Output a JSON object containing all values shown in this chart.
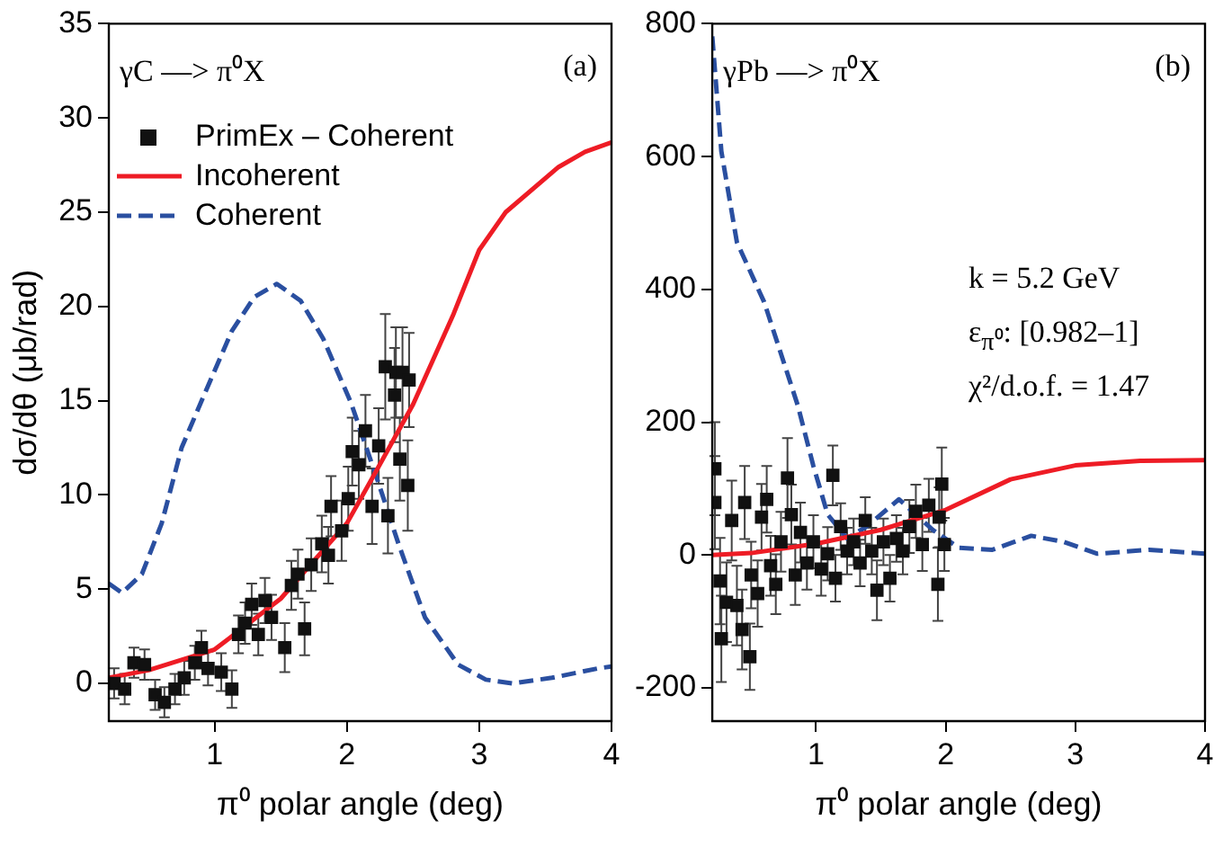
{
  "chart_data": [
    {
      "type": "scatter",
      "xlabel": "π⁰ polar angle (deg)",
      "ylabel": "dσ/dθ (μb/rad)",
      "xlim": [
        0.2,
        4
      ],
      "ylim": [
        -2,
        35
      ],
      "xticks": [
        1,
        2,
        3,
        4
      ],
      "yticks": [
        0,
        5,
        10,
        15,
        20,
        25,
        30,
        35
      ],
      "grid": false,
      "legend": "top left",
      "annotations": [
        "γC —> π⁰X",
        "(a)"
      ],
      "series": [
        {
          "name": "PrimEx – Coherent",
          "type": "scatter",
          "marker": "square",
          "color": "#111111",
          "x": [
            0.24,
            0.32,
            0.39,
            0.47,
            0.55,
            0.62,
            0.7,
            0.77,
            0.85,
            0.9,
            0.95,
            1.05,
            1.13,
            1.18,
            1.23,
            1.28,
            1.33,
            1.38,
            1.43,
            1.53,
            1.58,
            1.63,
            1.68,
            1.73,
            1.81,
            1.86,
            1.88,
            1.96,
            2.01,
            2.04,
            2.09,
            2.14,
            2.19,
            2.24,
            2.29,
            2.31,
            2.36,
            2.37,
            2.4,
            2.42,
            2.46,
            2.47
          ],
          "values": [
            0,
            -0.3,
            1.1,
            1,
            -0.6,
            -1,
            -0.3,
            0.3,
            1.1,
            1.9,
            0.8,
            0.6,
            -0.3,
            2.6,
            3.2,
            4.2,
            2.6,
            4.4,
            3.5,
            1.9,
            5.2,
            5.8,
            2.9,
            6.3,
            7.4,
            6.8,
            9.4,
            8.1,
            9.8,
            12.3,
            11.6,
            13.4,
            9.4,
            12.6,
            16.8,
            8.9,
            15.3,
            16.5,
            11.9,
            16.5,
            10.5,
            16.1
          ],
          "errors": [
            0.8,
            0.8,
            0.8,
            0.8,
            0.8,
            0.8,
            0.8,
            0.9,
            0.9,
            0.9,
            0.9,
            1,
            1,
            1,
            1.1,
            1.1,
            1.1,
            1.2,
            1.2,
            1.3,
            1.3,
            1.3,
            1.4,
            1.4,
            1.5,
            1.5,
            1.6,
            1.6,
            1.7,
            1.8,
            1.8,
            1.9,
            2,
            2,
            2.8,
            2,
            2.5,
            2.4,
            2.2,
            2.4,
            2.4,
            2.5
          ]
        },
        {
          "name": "Incoherent",
          "type": "line",
          "marker": "none",
          "line_style": "solid",
          "color": "#ee1c25",
          "x": [
            0.2,
            0.5,
            1,
            1.5,
            2,
            2.2,
            2.5,
            2.8,
            3,
            3.2,
            3.6,
            3.8,
            4
          ],
          "values": [
            0.3,
            0.7,
            1.8,
            4.5,
            8.5,
            11,
            14.8,
            19.5,
            23,
            25,
            27.4,
            28.2,
            28.7
          ]
        },
        {
          "name": "Coherent",
          "type": "line",
          "marker": "none",
          "line_style": "dashed",
          "color": "#2a4fa0",
          "x": [
            0.2,
            0.3,
            0.45,
            0.6,
            0.75,
            0.92,
            1.13,
            1.3,
            1.47,
            1.65,
            1.82,
            2.03,
            2.24,
            2.39,
            2.59,
            2.84,
            3.05,
            3.25,
            3.55,
            3.9,
            4
          ],
          "values": [
            5.3,
            4.8,
            5.8,
            8.5,
            12.5,
            15.3,
            18.7,
            20.5,
            21.2,
            20.3,
            18.3,
            14.9,
            10.6,
            7.4,
            3.5,
            1,
            0.2,
            0,
            0.3,
            0.8,
            0.9
          ]
        }
      ]
    },
    {
      "type": "scatter",
      "xlabel": "π⁰ polar angle (deg)",
      "xlim": [
        0.2,
        4
      ],
      "ylim": [
        -250,
        800
      ],
      "xticks": [
        1,
        2,
        3,
        4
      ],
      "yticks": [
        -200,
        0,
        200,
        400,
        600,
        800
      ],
      "grid": false,
      "annotations": [
        "γPb —> π⁰X",
        "(b)",
        "k = 5.2 GeV",
        "ε$_{π⁰}$: [0.982–1]",
        "χ²/d.o.f. = 1.47"
      ],
      "series": [
        {
          "type": "scatter",
          "marker": "square",
          "color": "#111111",
          "x": [
            0.22,
            0.22,
            0.26,
            0.27,
            0.31,
            0.35,
            0.39,
            0.43,
            0.45,
            0.49,
            0.5,
            0.55,
            0.58,
            0.62,
            0.65,
            0.69,
            0.73,
            0.78,
            0.81,
            0.84,
            0.88,
            0.93,
            0.98,
            1.04,
            1.09,
            1.13,
            1.15,
            1.19,
            1.24,
            1.29,
            1.34,
            1.38,
            1.43,
            1.47,
            1.52,
            1.57,
            1.62,
            1.67,
            1.72,
            1.77,
            1.82,
            1.87,
            1.94,
            1.95,
            1.97,
            1.99
          ],
          "values": [
            130,
            79,
            -39,
            -126,
            -71,
            52,
            -76,
            -112,
            79,
            -153,
            -30,
            -58,
            57,
            84,
            -16,
            -44,
            20,
            116,
            61,
            -30,
            34,
            -12,
            20,
            -21,
            2,
            120,
            -35,
            43,
            6,
            20,
            -12,
            52,
            6,
            -53,
            20,
            -35,
            25,
            6,
            43,
            66,
            16,
            75,
            -44,
            57,
            107,
            16
          ],
          "errors": [
            70,
            70,
            65,
            65,
            60,
            60,
            60,
            60,
            55,
            50,
            50,
            50,
            50,
            50,
            45,
            45,
            45,
            60,
            45,
            45,
            45,
            40,
            40,
            40,
            40,
            45,
            35,
            35,
            35,
            35,
            35,
            35,
            35,
            45,
            35,
            35,
            35,
            35,
            40,
            40,
            40,
            40,
            55,
            45,
            55,
            40
          ]
        },
        {
          "type": "line",
          "marker": "none",
          "line_style": "solid",
          "color": "#ee1c25",
          "x": [
            0.2,
            0.5,
            1,
            1.5,
            2,
            2.5,
            3,
            3.5,
            4
          ],
          "values": [
            0,
            3,
            17,
            38,
            68,
            114,
            135,
            142,
            143
          ]
        },
        {
          "type": "line",
          "marker": "none",
          "line_style": "dashed",
          "color": "#2a4fa0",
          "x": [
            0.2,
            0.27,
            0.39,
            0.6,
            0.77,
            0.86,
            0.98,
            1.09,
            1.24,
            1.39,
            1.64,
            1.9,
            2.1,
            2.36,
            2.66,
            2.91,
            3.17,
            3.57,
            4
          ],
          "values": [
            781,
            608,
            471,
            381,
            279,
            225,
            134,
            61,
            25,
            43,
            84,
            38,
            11,
            8,
            29,
            20,
            2,
            8,
            2
          ]
        }
      ]
    }
  ]
}
